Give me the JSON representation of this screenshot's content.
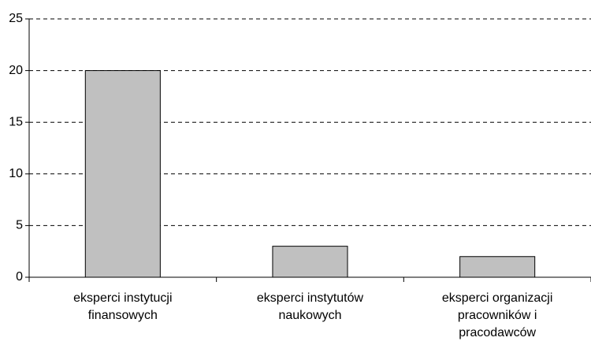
{
  "chart_data": {
    "type": "bar",
    "categories": [
      "eksperci instytucji finansowych",
      "eksperci instytutów naukowych",
      "eksperci organizacji pracowników i pracodawców"
    ],
    "values": [
      20,
      3,
      2
    ],
    "color": "#c0c0c0",
    "ylim": [
      0,
      25
    ],
    "yticks": [
      0,
      5,
      10,
      15,
      20,
      25
    ],
    "grid": true
  }
}
